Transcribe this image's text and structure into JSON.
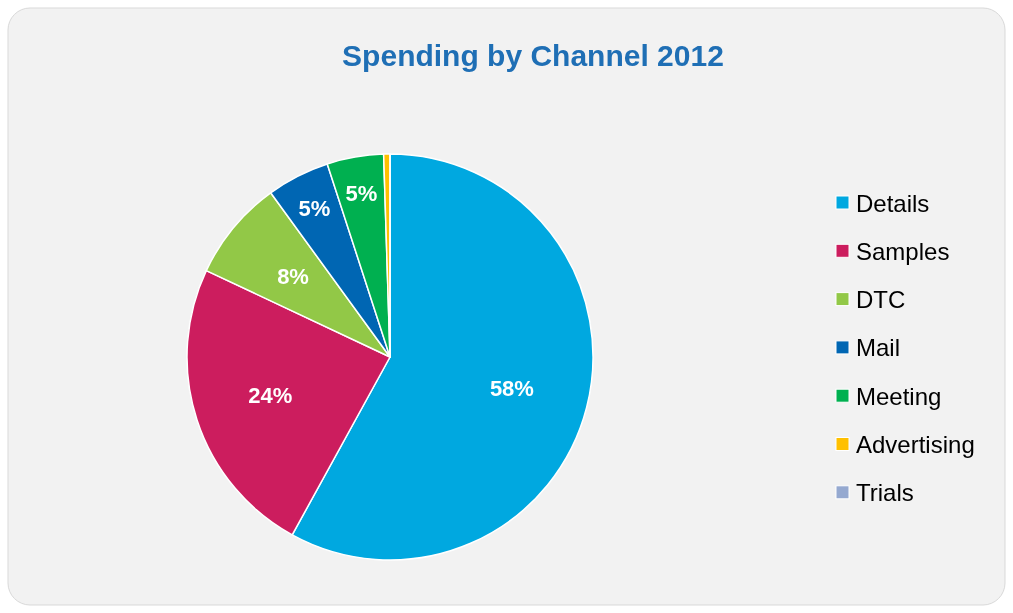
{
  "chart_data": {
    "type": "pie",
    "title": "Spending by Channel 2012",
    "categories": [
      "Details",
      "Samples",
      "DTC",
      "Mail",
      "Meeting",
      "Advertising",
      "Trials"
    ],
    "values": [
      58,
      24,
      8,
      5,
      4.5,
      0.5,
      0
    ],
    "value_labels": [
      "58%",
      "24%",
      "8%",
      "5%",
      "5%",
      null,
      null
    ],
    "colors": [
      "#00a8e0",
      "#cc1d5e",
      "#92c847",
      "#0066b3",
      "#00b050",
      "#ffc000",
      "#95a9d0"
    ],
    "legend": "right"
  }
}
